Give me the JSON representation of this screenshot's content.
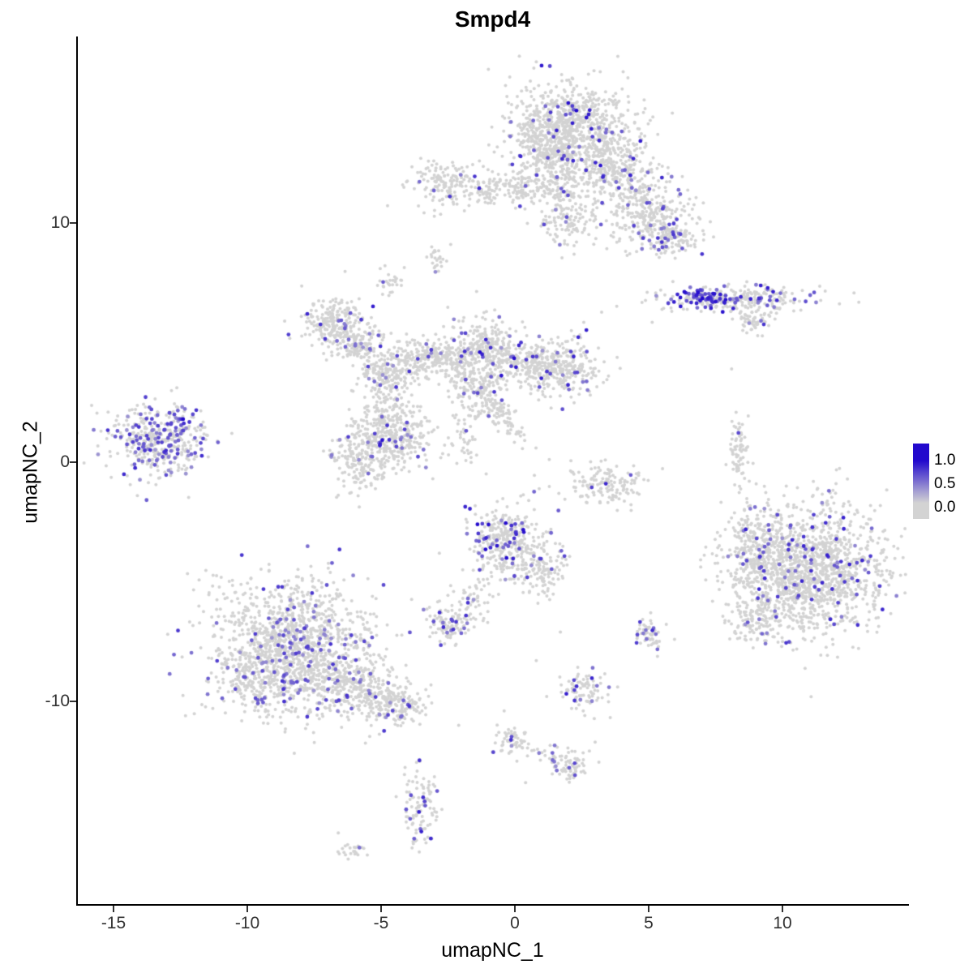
{
  "chart_data": {
    "type": "scatter",
    "title": "Smpd4",
    "xlabel": "umapNC_1",
    "ylabel": "umapNC_2",
    "x_ticks": [
      -15,
      -10,
      -5,
      0,
      5,
      10
    ],
    "y_ticks": [
      10,
      0,
      -10
    ],
    "xlim": [
      -16.3,
      14.7
    ],
    "ylim": [
      -18.5,
      17.8
    ],
    "grid": false,
    "legend": {
      "position": "right",
      "labels": [
        "1.0",
        "0.5",
        "0.0"
      ],
      "values": [
        1.0,
        0.5,
        0.0
      ]
    },
    "colors": {
      "low": "#d3d3d3",
      "high": "#2209cd",
      "background": "#ffffff",
      "axis": "#000000"
    },
    "clusters": [
      {
        "name": "top-main",
        "cx": 2.2,
        "cy": 13.9,
        "sx": 1.15,
        "sy": 0.95,
        "n": 850,
        "f": 0.05,
        "v0": 0.3,
        "v1": 1.0
      },
      {
        "name": "top-main-left",
        "cx": 1.2,
        "cy": 13.2,
        "sx": 0.6,
        "sy": 0.8,
        "n": 200,
        "f": 0.04,
        "v0": 0.3,
        "v1": 0.9
      },
      {
        "name": "top-arm-right",
        "cx": 3.9,
        "cy": 12.0,
        "sx": 0.85,
        "sy": 0.75,
        "n": 320,
        "f": 0.05,
        "v0": 0.3,
        "v1": 0.9,
        "rot": -0.5
      },
      {
        "name": "top-arm-lower",
        "cx": 5.1,
        "cy": 10.3,
        "sx": 0.8,
        "sy": 0.7,
        "n": 260,
        "f": 0.06,
        "v0": 0.3,
        "v1": 0.8
      },
      {
        "name": "top-tip",
        "cx": 5.8,
        "cy": 9.4,
        "sx": 0.5,
        "sy": 0.4,
        "n": 110,
        "f": 0.1,
        "v0": 0.4,
        "v1": 0.8
      },
      {
        "name": "top-down-arm",
        "cx": 1.6,
        "cy": 11.4,
        "sx": 0.5,
        "sy": 0.9,
        "n": 150,
        "f": 0.03,
        "v0": 0.3,
        "v1": 0.8
      },
      {
        "name": "top-small-blob",
        "cx": 2.2,
        "cy": 9.9,
        "sx": 0.5,
        "sy": 0.45,
        "n": 80,
        "f": 0.04,
        "v0": 0.3,
        "v1": 0.8
      },
      {
        "name": "top-left-cluster",
        "cx": -2.4,
        "cy": 11.6,
        "sx": 0.75,
        "sy": 0.5,
        "n": 170,
        "f": 0.05,
        "v0": 0.4,
        "v1": 0.9
      },
      {
        "name": "top-left-small",
        "cx": -1.0,
        "cy": 11.3,
        "sx": 0.3,
        "sy": 0.3,
        "n": 50,
        "f": 0.04,
        "v0": 0.3,
        "v1": 0.8
      },
      {
        "name": "top-mid-small",
        "cx": 0.2,
        "cy": 11.5,
        "sx": 0.45,
        "sy": 0.35,
        "n": 90,
        "f": 0.05,
        "v0": 0.3,
        "v1": 0.8
      },
      {
        "name": "right-streak",
        "cx": 8.2,
        "cy": 6.8,
        "sx": 1.4,
        "sy": 0.28,
        "n": 260,
        "f": 0.18,
        "v0": 0.3,
        "v1": 0.9
      },
      {
        "name": "right-streak-hot",
        "cx": 7.2,
        "cy": 6.85,
        "sx": 0.55,
        "sy": 0.2,
        "n": 70,
        "f": 0.75,
        "v0": 0.45,
        "v1": 1.0
      },
      {
        "name": "right-streak-tail",
        "cx": 8.9,
        "cy": 6.0,
        "sx": 0.4,
        "sy": 0.25,
        "n": 50,
        "f": 0.1,
        "v0": 0.3,
        "v1": 0.8
      },
      {
        "name": "net-a",
        "cx": -6.9,
        "cy": 5.9,
        "sx": 0.55,
        "sy": 0.5,
        "n": 210,
        "f": 0.06,
        "v0": 0.3,
        "v1": 0.9
      },
      {
        "name": "net-b",
        "cx": -5.9,
        "cy": 5.0,
        "sx": 0.45,
        "sy": 0.45,
        "n": 140,
        "f": 0.05,
        "v0": 0.3,
        "v1": 0.8
      },
      {
        "name": "net-c",
        "cx": -4.7,
        "cy": 3.8,
        "sx": 0.6,
        "sy": 0.6,
        "n": 220,
        "f": 0.05,
        "v0": 0.3,
        "v1": 0.8
      },
      {
        "name": "net-d",
        "cx": -3.4,
        "cy": 4.4,
        "sx": 0.45,
        "sy": 0.4,
        "n": 120,
        "f": 0.05,
        "v0": 0.3,
        "v1": 0.8
      },
      {
        "name": "net-bridge",
        "cx": -2.4,
        "cy": 4.4,
        "sx": 0.45,
        "sy": 0.35,
        "n": 90,
        "f": 0.03,
        "v0": 0.3,
        "v1": 0.8
      },
      {
        "name": "net-e",
        "cx": -1.1,
        "cy": 4.6,
        "sx": 0.65,
        "sy": 0.75,
        "n": 300,
        "f": 0.07,
        "v0": 0.3,
        "v1": 1.0
      },
      {
        "name": "net-e-lower",
        "cx": -1.6,
        "cy": 3.3,
        "sx": 0.5,
        "sy": 0.5,
        "n": 90,
        "f": 0.04,
        "v0": 0.3,
        "v1": 0.8
      },
      {
        "name": "net-f",
        "cx": 0.5,
        "cy": 4.1,
        "sx": 0.55,
        "sy": 0.5,
        "n": 170,
        "f": 0.05,
        "v0": 0.3,
        "v1": 0.8
      },
      {
        "name": "net-g",
        "cx": 1.9,
        "cy": 4.0,
        "sx": 0.7,
        "sy": 0.6,
        "n": 260,
        "f": 0.06,
        "v0": 0.3,
        "v1": 0.9
      },
      {
        "name": "net-diag-tail",
        "cx": -0.9,
        "cy": 2.4,
        "sx": 0.9,
        "sy": 0.25,
        "n": 130,
        "f": 0.04,
        "v0": 0.3,
        "v1": 0.8,
        "rot": -0.9
      },
      {
        "name": "net-lower-left",
        "cx": -4.5,
        "cy": 1.0,
        "sx": 0.7,
        "sy": 0.65,
        "n": 300,
        "f": 0.09,
        "v0": 0.3,
        "v1": 1.0
      },
      {
        "name": "net-lower-left2",
        "cx": -5.8,
        "cy": 0.2,
        "sx": 0.55,
        "sy": 0.75,
        "n": 200,
        "f": 0.07,
        "v0": 0.3,
        "v1": 0.9
      },
      {
        "name": "net-c-bridge",
        "cx": -4.9,
        "cy": 2.4,
        "sx": 0.4,
        "sy": 0.5,
        "n": 70,
        "f": 0.03,
        "v0": 0.3,
        "v1": 0.8
      },
      {
        "name": "center-col",
        "cx": -1.9,
        "cy": 1.2,
        "sx": 0.4,
        "sy": 0.8,
        "n": 50,
        "f": 0.04,
        "v0": 0.3,
        "v1": 0.8
      },
      {
        "name": "far-left",
        "cx": -13.3,
        "cy": 0.9,
        "sx": 0.95,
        "sy": 0.75,
        "n": 430,
        "f": 0.28,
        "v0": 0.3,
        "v1": 0.85
      },
      {
        "name": "arc-right-center",
        "cx": 3.2,
        "cy": -0.9,
        "sx": 0.8,
        "sy": 0.45,
        "n": 150,
        "f": 0.03,
        "v0": 0.4,
        "v1": 0.9
      },
      {
        "name": "center-bottom",
        "cx": -0.4,
        "cy": -3.3,
        "sx": 0.7,
        "sy": 0.75,
        "n": 330,
        "f": 0.12,
        "v0": 0.35,
        "v1": 1.0
      },
      {
        "name": "center-bottom-arm",
        "cx": 0.9,
        "cy": -4.6,
        "sx": 0.55,
        "sy": 0.5,
        "n": 130,
        "f": 0.06,
        "v0": 0.3,
        "v1": 0.9
      },
      {
        "name": "center-bottom-tail",
        "cx": -1.7,
        "cy": -5.8,
        "sx": 0.45,
        "sy": 0.6,
        "n": 60,
        "f": 0.05,
        "v0": 0.3,
        "v1": 0.8
      },
      {
        "name": "small-left-tail",
        "cx": -2.5,
        "cy": -6.8,
        "sx": 0.35,
        "sy": 0.4,
        "n": 90,
        "f": 0.15,
        "v0": 0.4,
        "v1": 0.9
      },
      {
        "name": "bottom-left-main",
        "cx": -8.4,
        "cy": -7.7,
        "sx": 1.5,
        "sy": 1.35,
        "n": 1350,
        "f": 0.09,
        "v0": 0.3,
        "v1": 0.8
      },
      {
        "name": "bottom-left-arm",
        "cx": -5.9,
        "cy": -9.4,
        "sx": 1.0,
        "sy": 0.6,
        "n": 330,
        "f": 0.07,
        "v0": 0.3,
        "v1": 0.8,
        "rot": -0.35
      },
      {
        "name": "bottom-left-tip",
        "cx": -4.3,
        "cy": -10.2,
        "sx": 0.5,
        "sy": 0.35,
        "n": 120,
        "f": 0.06,
        "v0": 0.3,
        "v1": 0.8
      },
      {
        "name": "bottom-left-lowarm",
        "cx": -9.8,
        "cy": -9.4,
        "sx": 0.5,
        "sy": 0.5,
        "n": 100,
        "f": 0.06,
        "v0": 0.3,
        "v1": 0.8
      },
      {
        "name": "bottom-right-main",
        "cx": 10.9,
        "cy": -4.5,
        "sx": 1.5,
        "sy": 1.3,
        "n": 1500,
        "f": 0.055,
        "v0": 0.3,
        "v1": 0.9
      },
      {
        "name": "bottom-right-left-edge",
        "cx": 8.9,
        "cy": -3.6,
        "sx": 0.4,
        "sy": 0.9,
        "n": 150,
        "f": 0.06,
        "v0": 0.3,
        "v1": 0.8
      },
      {
        "name": "bottom-right-lower-arc",
        "cx": 9.0,
        "cy": -6.6,
        "sx": 0.45,
        "sy": 0.55,
        "n": 110,
        "f": 0.05,
        "v0": 0.3,
        "v1": 0.8
      },
      {
        "name": "right-sliver",
        "cx": 8.35,
        "cy": 0.5,
        "sx": 0.16,
        "sy": 0.7,
        "n": 70,
        "f": 0.02,
        "v0": 0.3,
        "v1": 0.7
      },
      {
        "name": "small-right-low",
        "cx": 5.0,
        "cy": -7.2,
        "sx": 0.25,
        "sy": 0.3,
        "n": 55,
        "f": 0.15,
        "v0": 0.4,
        "v1": 0.9
      },
      {
        "name": "small-mid-low",
        "cx": 2.6,
        "cy": -9.6,
        "sx": 0.45,
        "sy": 0.4,
        "n": 90,
        "f": 0.12,
        "v0": 0.4,
        "v1": 0.9
      },
      {
        "name": "chain-a",
        "cx": -0.1,
        "cy": -11.6,
        "sx": 0.3,
        "sy": 0.3,
        "n": 55,
        "f": 0.08,
        "v0": 0.3,
        "v1": 0.8
      },
      {
        "name": "chain-b",
        "cx": 2.2,
        "cy": -12.7,
        "sx": 0.35,
        "sy": 0.3,
        "n": 60,
        "f": 0.06,
        "v0": 0.3,
        "v1": 0.8
      },
      {
        "name": "chain-bridge",
        "cx": 1.0,
        "cy": -12.2,
        "sx": 0.5,
        "sy": 0.25,
        "n": 30,
        "f": 0.03,
        "v0": 0.3,
        "v1": 0.8
      },
      {
        "name": "bottom-small",
        "cx": -3.5,
        "cy": -14.4,
        "sx": 0.33,
        "sy": 0.75,
        "n": 110,
        "f": 0.13,
        "v0": 0.4,
        "v1": 0.9
      },
      {
        "name": "bottom-tiny",
        "cx": -6.1,
        "cy": -16.2,
        "sx": 0.25,
        "sy": 0.18,
        "n": 22,
        "f": 0.08,
        "v0": 0.3,
        "v1": 0.7
      },
      {
        "name": "tiny-upper",
        "cx": -4.6,
        "cy": 7.5,
        "sx": 0.22,
        "sy": 0.25,
        "n": 28,
        "f": 0.1,
        "v0": 0.5,
        "v1": 0.9
      },
      {
        "name": "tiny-mid",
        "cx": -2.9,
        "cy": 8.8,
        "sx": 0.2,
        "sy": 0.3,
        "n": 24,
        "f": 0.05,
        "v0": 0.3,
        "v1": 0.7
      }
    ],
    "singles": [
      {
        "x": -12.4,
        "y": 1.8,
        "v": 1.0
      },
      {
        "x": 2.3,
        "y": 14.7,
        "v": 1.0
      },
      {
        "x": 3.2,
        "y": 12.4,
        "v": 0.95
      },
      {
        "x": 3.4,
        "y": -0.9,
        "v": 0.85
      },
      {
        "x": 8.1,
        "y": 3.9,
        "v": 0
      },
      {
        "x": 0.8,
        "y": -8.3,
        "v": 0
      },
      {
        "x": 1.7,
        "y": -7.1,
        "v": 0
      },
      {
        "x": -2.1,
        "y": -11.0,
        "v": 0
      },
      {
        "x": 0.4,
        "y": -13.4,
        "v": 0
      },
      {
        "x": 3.0,
        "y": -11.7,
        "v": 0
      },
      {
        "x": -0.4,
        "y": -10.4,
        "v": 0
      },
      {
        "x": -6.6,
        "y": -15.5,
        "v": 0
      }
    ]
  }
}
